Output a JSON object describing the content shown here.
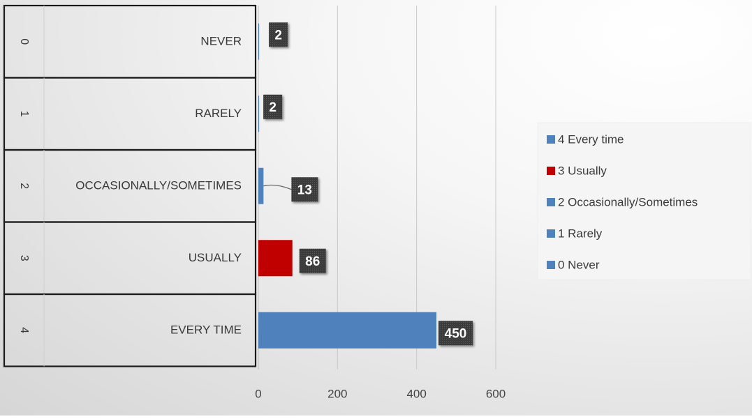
{
  "chart_data": {
    "type": "bar",
    "orientation": "horizontal",
    "categories": [
      "Never",
      "Rarely",
      "Occasionally/Sometimes",
      "Usually",
      "Every time"
    ],
    "category_axis": {
      "codes": [
        "0",
        "1",
        "2",
        "3",
        "4"
      ],
      "labels": [
        "NEVER",
        "RARELY",
        "OCCASIONALLY/SOMETIMES",
        "USUALLY",
        "EVERY TIME"
      ]
    },
    "values": [
      2,
      2,
      13,
      86,
      450
    ],
    "data_labels": [
      "2",
      "2",
      "13",
      "86",
      "450"
    ],
    "xlim": [
      0,
      600
    ],
    "x_ticks": [
      0,
      200,
      400,
      600
    ],
    "x_tick_labels": [
      "0",
      "200",
      "400",
      "600"
    ],
    "grid": true,
    "legend_position": "right",
    "legend": [
      {
        "label": "4 Every time",
        "color": "#4f81bd"
      },
      {
        "label": "3 Usually",
        "color": "#c00000"
      },
      {
        "label": "2 Occasionally/Sometimes",
        "color": "#4f81bd"
      },
      {
        "label": "1 Rarely",
        "color": "#4f81bd"
      },
      {
        "label": "0 Never",
        "color": "#4f81bd"
      }
    ],
    "colors": {
      "bar": "#4f81bd",
      "highlight": "#c00000",
      "data_label_bg": "#3b3b3b"
    },
    "bar_colors": [
      "#4f81bd",
      "#4f81bd",
      "#4f81bd",
      "#c00000",
      "#4f81bd"
    ]
  }
}
